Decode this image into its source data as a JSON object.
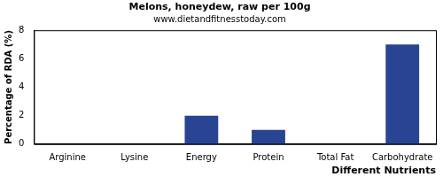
{
  "chart_data": {
    "type": "bar",
    "title": "Melons, honeydew, raw per 100g",
    "subtitle": "www.dietandfitnesstoday.com",
    "x_label": "Different Nutrients",
    "y_label": "Percentage of RDA (%)",
    "categories": [
      "Arginine",
      "Lysine",
      "Energy",
      "Protein",
      "Total Fat",
      "Carbohydrate"
    ],
    "values": [
      0,
      0,
      2,
      1,
      0,
      7
    ],
    "color": "#2a4494",
    "ylim": [
      0,
      8
    ],
    "yticks": [
      0,
      2,
      4,
      6,
      8
    ],
    "grid": false
  }
}
